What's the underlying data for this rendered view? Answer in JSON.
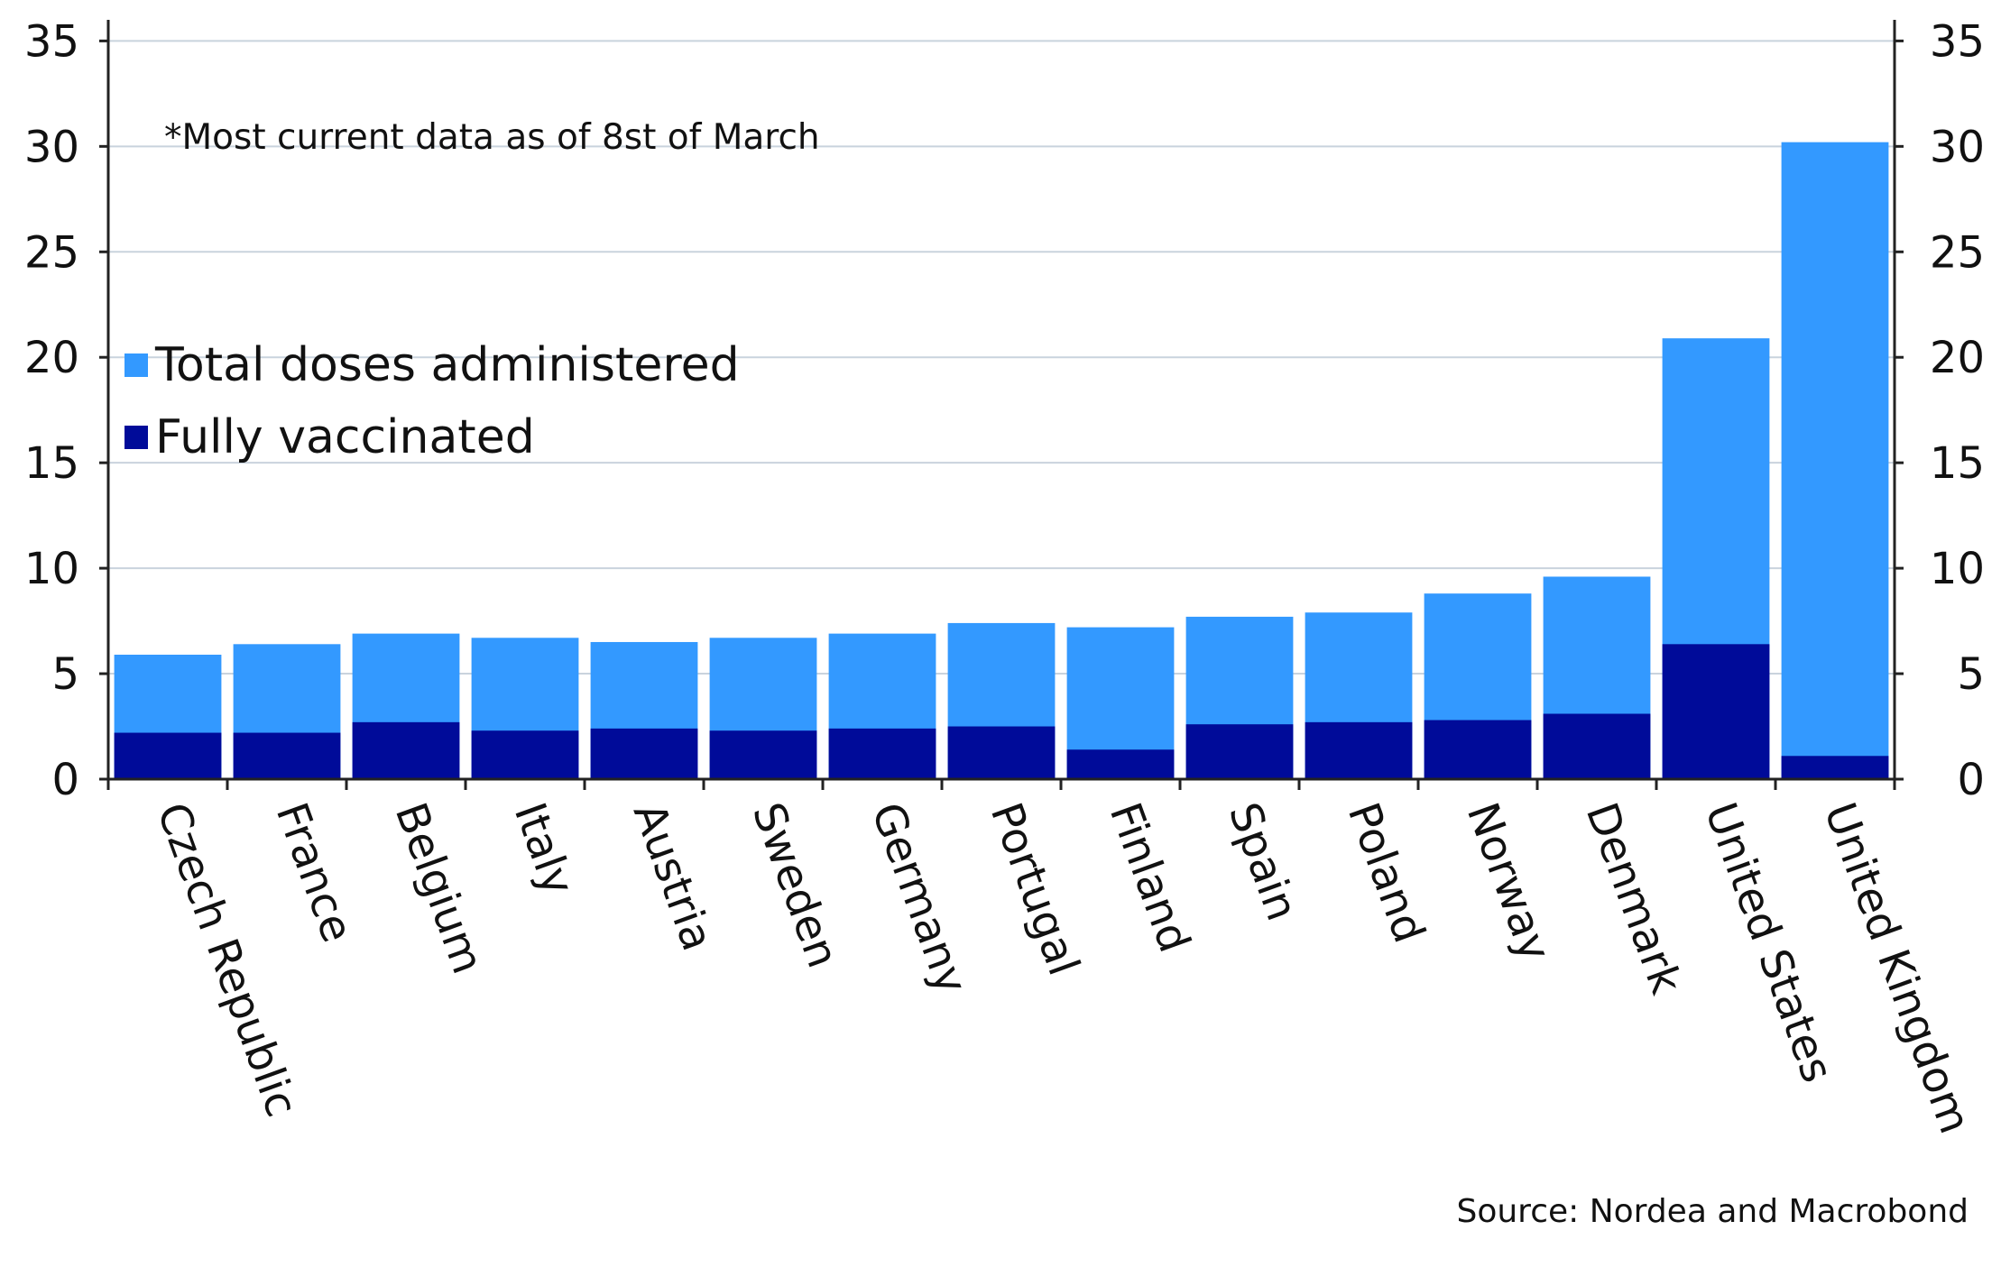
{
  "chart_data": {
    "type": "bar",
    "stacking": "overlay",
    "note": "*Most current data as of 8st of March",
    "source": "Source: Nordea and Macrobond",
    "categories": [
      "Czech Republic",
      "France",
      "Belgium",
      "Italy",
      "Austria",
      "Sweden",
      "Germany",
      "Portugal",
      "Finland",
      "Spain",
      "Poland",
      "Norway",
      "Denmark",
      "United States",
      "United Kingdom"
    ],
    "series": [
      {
        "name": "Total doses administered",
        "color": "#3399ff",
        "values": [
          5.9,
          6.4,
          6.9,
          6.7,
          6.5,
          6.7,
          6.9,
          7.4,
          7.2,
          7.7,
          7.9,
          8.8,
          9.6,
          20.9,
          30.2
        ]
      },
      {
        "name": "Fully vaccinated",
        "color": "#000b99",
        "values": [
          2.2,
          2.2,
          2.7,
          2.3,
          2.4,
          2.3,
          2.4,
          2.5,
          1.4,
          2.6,
          2.7,
          2.8,
          3.1,
          6.4,
          1.1
        ]
      }
    ],
    "ylim": [
      0,
      36
    ],
    "yticks": [
      0,
      5,
      10,
      15,
      20,
      25,
      30,
      35
    ],
    "y_axis_sides": "left and right",
    "grid": true,
    "legend_position": "left, mid-height"
  }
}
